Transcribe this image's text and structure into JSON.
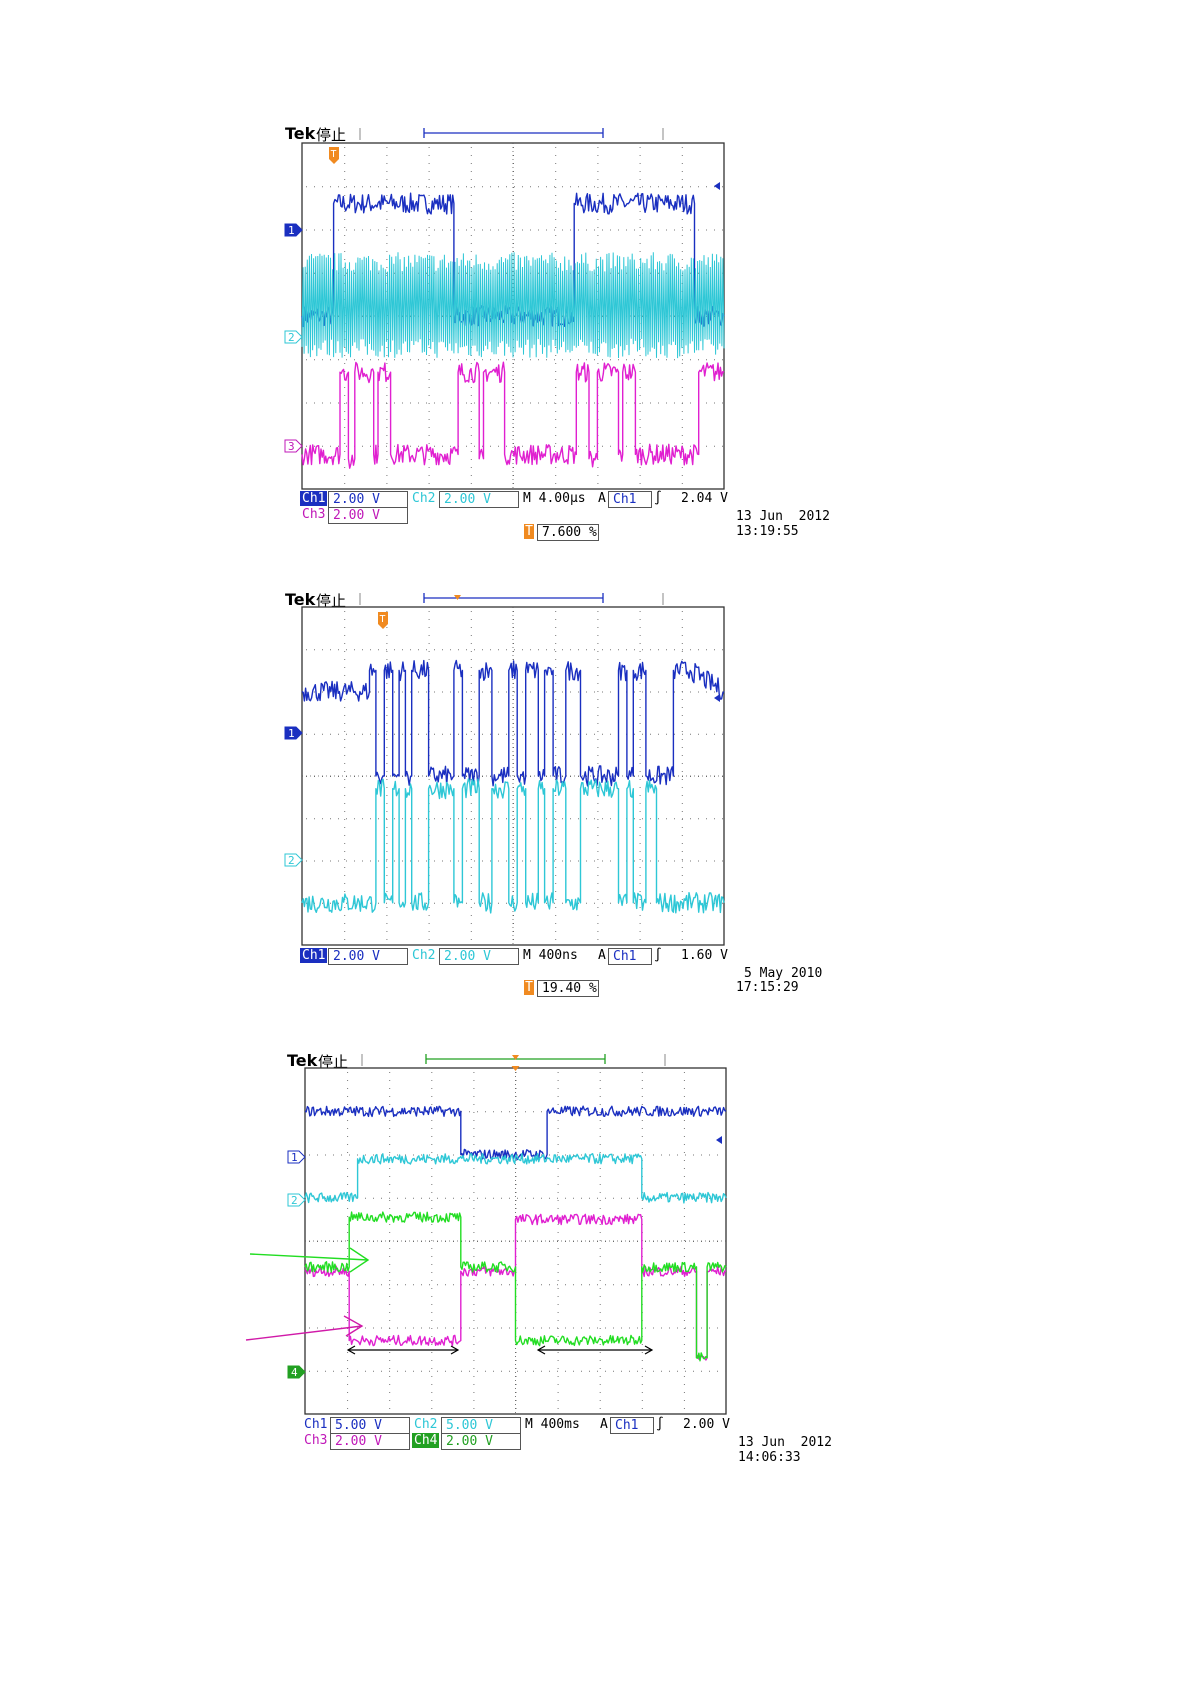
{
  "scopes": [
    {
      "brand": "Tek",
      "state": "停止",
      "channels": [
        {
          "id": "ch1",
          "label": "Ch1",
          "scale": "2.00 V",
          "color": "#1a2fc0"
        },
        {
          "id": "ch2",
          "label": "Ch2",
          "scale": "2.00 V",
          "color": "#2ec7d6"
        },
        {
          "id": "ch3",
          "label": "Ch3",
          "scale": "2.00 V",
          "color": "#e020d0"
        }
      ],
      "markers": [
        "1",
        "2",
        "3"
      ],
      "timebase": "M 4.00µs",
      "trigger": {
        "label": "A",
        "channel": "Ch1",
        "slope": "rising",
        "level": "2.04 V"
      },
      "trigger_position": "7.600 %",
      "date": "13 Jun  2012",
      "time": "13:19:55"
    },
    {
      "brand": "Tek",
      "state": "停止",
      "channels": [
        {
          "id": "ch1",
          "label": "Ch1",
          "scale": "2.00 V",
          "color": "#1a2fc0"
        },
        {
          "id": "ch2",
          "label": "Ch2",
          "scale": "2.00 V",
          "color": "#2ec7d6"
        }
      ],
      "markers": [
        "1",
        "2"
      ],
      "timebase": "M 400ns",
      "trigger": {
        "label": "A",
        "channel": "Ch1",
        "slope": "rising",
        "level": "1.60 V"
      },
      "trigger_position": "19.40 %",
      "date": "5 May 2010",
      "time": "17:15:29"
    },
    {
      "brand": "Tek",
      "state": "停止",
      "channels": [
        {
          "id": "ch1",
          "label": "Ch1",
          "scale": "5.00 V",
          "color": "#1a2fc0"
        },
        {
          "id": "ch2",
          "label": "Ch2",
          "scale": "5.00 V",
          "color": "#2ec7d6"
        },
        {
          "id": "ch3",
          "label": "Ch3",
          "scale": "2.00 V",
          "color": "#e020d0"
        },
        {
          "id": "ch4",
          "label": "Ch4",
          "scale": "2.00 V",
          "color": "#22dd22"
        }
      ],
      "markers": [
        "1",
        "2",
        "4"
      ],
      "timebase": "M 400ms",
      "trigger": {
        "label": "A",
        "channel": "Ch1",
        "slope": "rising",
        "level": "2.00 V"
      },
      "date": "13 Jun  2012",
      "time": "14:06:33"
    }
  ],
  "chart_data": [
    {
      "type": "line",
      "xlim": [
        0,
        10
      ],
      "ylim": [
        -4,
        4
      ],
      "grid": true,
      "series": [
        {
          "channel": "Ch1",
          "color": "#1a2fc0",
          "noise": 0.03,
          "points": [
            [
              0,
              0.0
            ],
            [
              0.75,
              0.0
            ],
            [
              0.75,
              2.6
            ],
            [
              3.6,
              2.6
            ],
            [
              3.6,
              0.0
            ],
            [
              6.45,
              0.0
            ],
            [
              6.45,
              2.6
            ],
            [
              9.3,
              2.6
            ],
            [
              9.3,
              0.0
            ],
            [
              10,
              0.0
            ]
          ]
        },
        {
          "channel": "Ch2",
          "color": "#2ec7d6",
          "clock": true,
          "cycles": 200,
          "hi": 1.25,
          "lo": -0.75
        },
        {
          "channel": "Ch3",
          "color": "#e020d0",
          "noise": 0.03,
          "points": [
            [
              0,
              -3.2
            ],
            [
              0.9,
              -3.2
            ],
            [
              0.9,
              -1.3
            ],
            [
              1.1,
              -1.3
            ],
            [
              1.1,
              -3.3
            ],
            [
              1.25,
              -3.3
            ],
            [
              1.25,
              -1.3
            ],
            [
              1.7,
              -1.3
            ],
            [
              1.7,
              -3.2
            ],
            [
              1.8,
              -3.2
            ],
            [
              1.8,
              -1.3
            ],
            [
              2.1,
              -1.3
            ],
            [
              2.1,
              -3.2
            ],
            [
              3.7,
              -3.2
            ],
            [
              3.7,
              -1.3
            ],
            [
              4.2,
              -1.3
            ],
            [
              4.2,
              -3.3
            ],
            [
              4.3,
              -3.3
            ],
            [
              4.3,
              -1.3
            ],
            [
              4.8,
              -1.3
            ],
            [
              4.8,
              -3.2
            ],
            [
              6.5,
              -3.2
            ],
            [
              6.5,
              -1.3
            ],
            [
              6.8,
              -1.3
            ],
            [
              6.8,
              -3.3
            ],
            [
              7.0,
              -3.3
            ],
            [
              7.0,
              -1.3
            ],
            [
              7.5,
              -1.3
            ],
            [
              7.5,
              -3.2
            ],
            [
              7.6,
              -3.2
            ],
            [
              7.6,
              -1.3
            ],
            [
              7.9,
              -1.3
            ],
            [
              7.9,
              -3.2
            ],
            [
              9.4,
              -3.2
            ],
            [
              9.4,
              -1.3
            ],
            [
              10,
              -1.3
            ]
          ]
        }
      ]
    },
    {
      "type": "line",
      "xlim": [
        0,
        10
      ],
      "ylim": [
        -4,
        4
      ],
      "grid": true,
      "series": [
        {
          "channel": "Ch1",
          "color": "#1a2fc0",
          "noise": 0.03,
          "points": [
            [
              0,
              2.0
            ],
            [
              1.6,
              2.0
            ],
            [
              1.6,
              2.5
            ],
            [
              1.75,
              2.5
            ],
            [
              1.75,
              0.0
            ],
            [
              1.95,
              0.0
            ],
            [
              1.95,
              2.5
            ],
            [
              2.15,
              2.5
            ],
            [
              2.15,
              0.0
            ],
            [
              2.3,
              0.0
            ],
            [
              2.3,
              2.5
            ],
            [
              2.45,
              2.5
            ],
            [
              2.45,
              0.0
            ],
            [
              2.6,
              0.0
            ],
            [
              2.6,
              2.5
            ],
            [
              3.0,
              2.5
            ],
            [
              3.0,
              0.0
            ],
            [
              3.6,
              0.0
            ],
            [
              3.6,
              2.5
            ],
            [
              3.8,
              2.5
            ],
            [
              3.8,
              0.0
            ],
            [
              4.2,
              0.0
            ],
            [
              4.2,
              2.5
            ],
            [
              4.5,
              2.5
            ],
            [
              4.5,
              0.0
            ],
            [
              4.9,
              0.0
            ],
            [
              4.9,
              2.5
            ],
            [
              5.1,
              2.5
            ],
            [
              5.1,
              0.0
            ],
            [
              5.3,
              0.0
            ],
            [
              5.3,
              2.5
            ],
            [
              5.6,
              2.5
            ],
            [
              5.6,
              0.0
            ],
            [
              5.75,
              0.0
            ],
            [
              5.75,
              2.5
            ],
            [
              5.95,
              2.5
            ],
            [
              5.95,
              0.0
            ],
            [
              6.25,
              0.0
            ],
            [
              6.25,
              2.5
            ],
            [
              6.6,
              2.5
            ],
            [
              6.6,
              0.0
            ],
            [
              7.5,
              0.0
            ],
            [
              7.5,
              2.5
            ],
            [
              7.7,
              2.5
            ],
            [
              7.7,
              0.0
            ],
            [
              7.85,
              0.0
            ],
            [
              7.85,
              2.5
            ],
            [
              8.15,
              2.5
            ],
            [
              8.15,
              0.0
            ],
            [
              8.8,
              0.0
            ],
            [
              8.8,
              2.5
            ],
            [
              9.2,
              2.5
            ],
            [
              10,
              2.0
            ]
          ]
        },
        {
          "channel": "Ch2",
          "color": "#2ec7d6",
          "noise": 0.03,
          "points": [
            [
              0,
              -3.0
            ],
            [
              1.75,
              -3.0
            ],
            [
              1.75,
              -0.3
            ],
            [
              1.95,
              -0.3
            ],
            [
              1.95,
              -3.0
            ],
            [
              2.15,
              -3.0
            ],
            [
              2.15,
              -0.3
            ],
            [
              2.3,
              -0.3
            ],
            [
              2.3,
              -3.0
            ],
            [
              2.45,
              -3.0
            ],
            [
              2.45,
              -0.3
            ],
            [
              2.6,
              -0.3
            ],
            [
              2.6,
              -3.0
            ],
            [
              3.0,
              -3.0
            ],
            [
              3.0,
              -0.3
            ],
            [
              3.6,
              -0.3
            ],
            [
              3.6,
              -3.0
            ],
            [
              3.8,
              -3.0
            ],
            [
              3.8,
              -0.3
            ],
            [
              4.2,
              -0.3
            ],
            [
              4.2,
              -3.0
            ],
            [
              4.5,
              -3.0
            ],
            [
              4.5,
              -0.3
            ],
            [
              4.9,
              -0.3
            ],
            [
              4.9,
              -3.0
            ],
            [
              5.1,
              -3.0
            ],
            [
              5.1,
              -0.3
            ],
            [
              5.3,
              -0.3
            ],
            [
              5.3,
              -3.0
            ],
            [
              5.6,
              -3.0
            ],
            [
              5.6,
              -0.3
            ],
            [
              5.75,
              -0.3
            ],
            [
              5.75,
              -3.0
            ],
            [
              5.95,
              -3.0
            ],
            [
              5.95,
              -0.3
            ],
            [
              6.25,
              -0.3
            ],
            [
              6.25,
              -3.0
            ],
            [
              6.6,
              -3.0
            ],
            [
              6.6,
              -0.3
            ],
            [
              7.5,
              -0.3
            ],
            [
              7.5,
              -3.0
            ],
            [
              7.7,
              -3.0
            ],
            [
              7.7,
              -0.3
            ],
            [
              7.85,
              -0.3
            ],
            [
              7.85,
              -3.0
            ],
            [
              8.15,
              -3.0
            ],
            [
              8.15,
              -0.3
            ],
            [
              8.4,
              -0.3
            ],
            [
              8.4,
              -3.0
            ],
            [
              10,
              -3.0
            ]
          ]
        }
      ]
    },
    {
      "type": "line",
      "xlim": [
        0,
        10
      ],
      "ylim": [
        -4,
        4
      ],
      "grid": true,
      "series": [
        {
          "channel": "Ch1",
          "color": "#1a2fc0",
          "noise": 0.015,
          "points": [
            [
              0,
              3.0
            ],
            [
              3.7,
              3.0
            ],
            [
              3.7,
              2.0
            ],
            [
              5.75,
              2.0
            ],
            [
              5.75,
              3.0
            ],
            [
              10,
              3.0
            ]
          ]
        },
        {
          "channel": "Ch2",
          "color": "#2ec7d6",
          "noise": 0.015,
          "points": [
            [
              0,
              1.0
            ],
            [
              1.25,
              1.0
            ],
            [
              1.25,
              1.9
            ],
            [
              8.0,
              1.9
            ],
            [
              8.0,
              1.0
            ],
            [
              10,
              1.0
            ]
          ]
        },
        {
          "channel": "Ch3",
          "color": "#e020d0",
          "noise": 0.015,
          "points": [
            [
              0,
              -0.7
            ],
            [
              1.05,
              -0.7
            ],
            [
              1.05,
              -2.3
            ],
            [
              3.7,
              -2.3
            ],
            [
              3.7,
              -0.7
            ],
            [
              5.0,
              -0.7
            ],
            [
              5.0,
              0.5
            ],
            [
              8.0,
              0.5
            ],
            [
              8.0,
              -0.7
            ],
            [
              9.3,
              -0.7
            ],
            [
              9.3,
              -2.7
            ],
            [
              9.55,
              -2.7
            ],
            [
              9.55,
              -0.7
            ],
            [
              10,
              -0.7
            ]
          ]
        },
        {
          "channel": "Ch4",
          "color": "#22dd22",
          "noise": 0.015,
          "points": [
            [
              0,
              -0.6
            ],
            [
              1.05,
              -0.6
            ],
            [
              1.05,
              0.55
            ],
            [
              3.7,
              0.55
            ],
            [
              3.7,
              -0.6
            ],
            [
              5.0,
              -0.6
            ],
            [
              5.0,
              -2.3
            ],
            [
              8.0,
              -2.3
            ],
            [
              8.0,
              -0.6
            ],
            [
              9.3,
              -0.6
            ],
            [
              9.3,
              -2.7
            ],
            [
              9.55,
              -2.7
            ],
            [
              9.55,
              -0.6
            ],
            [
              10,
              -0.6
            ]
          ]
        }
      ]
    }
  ]
}
